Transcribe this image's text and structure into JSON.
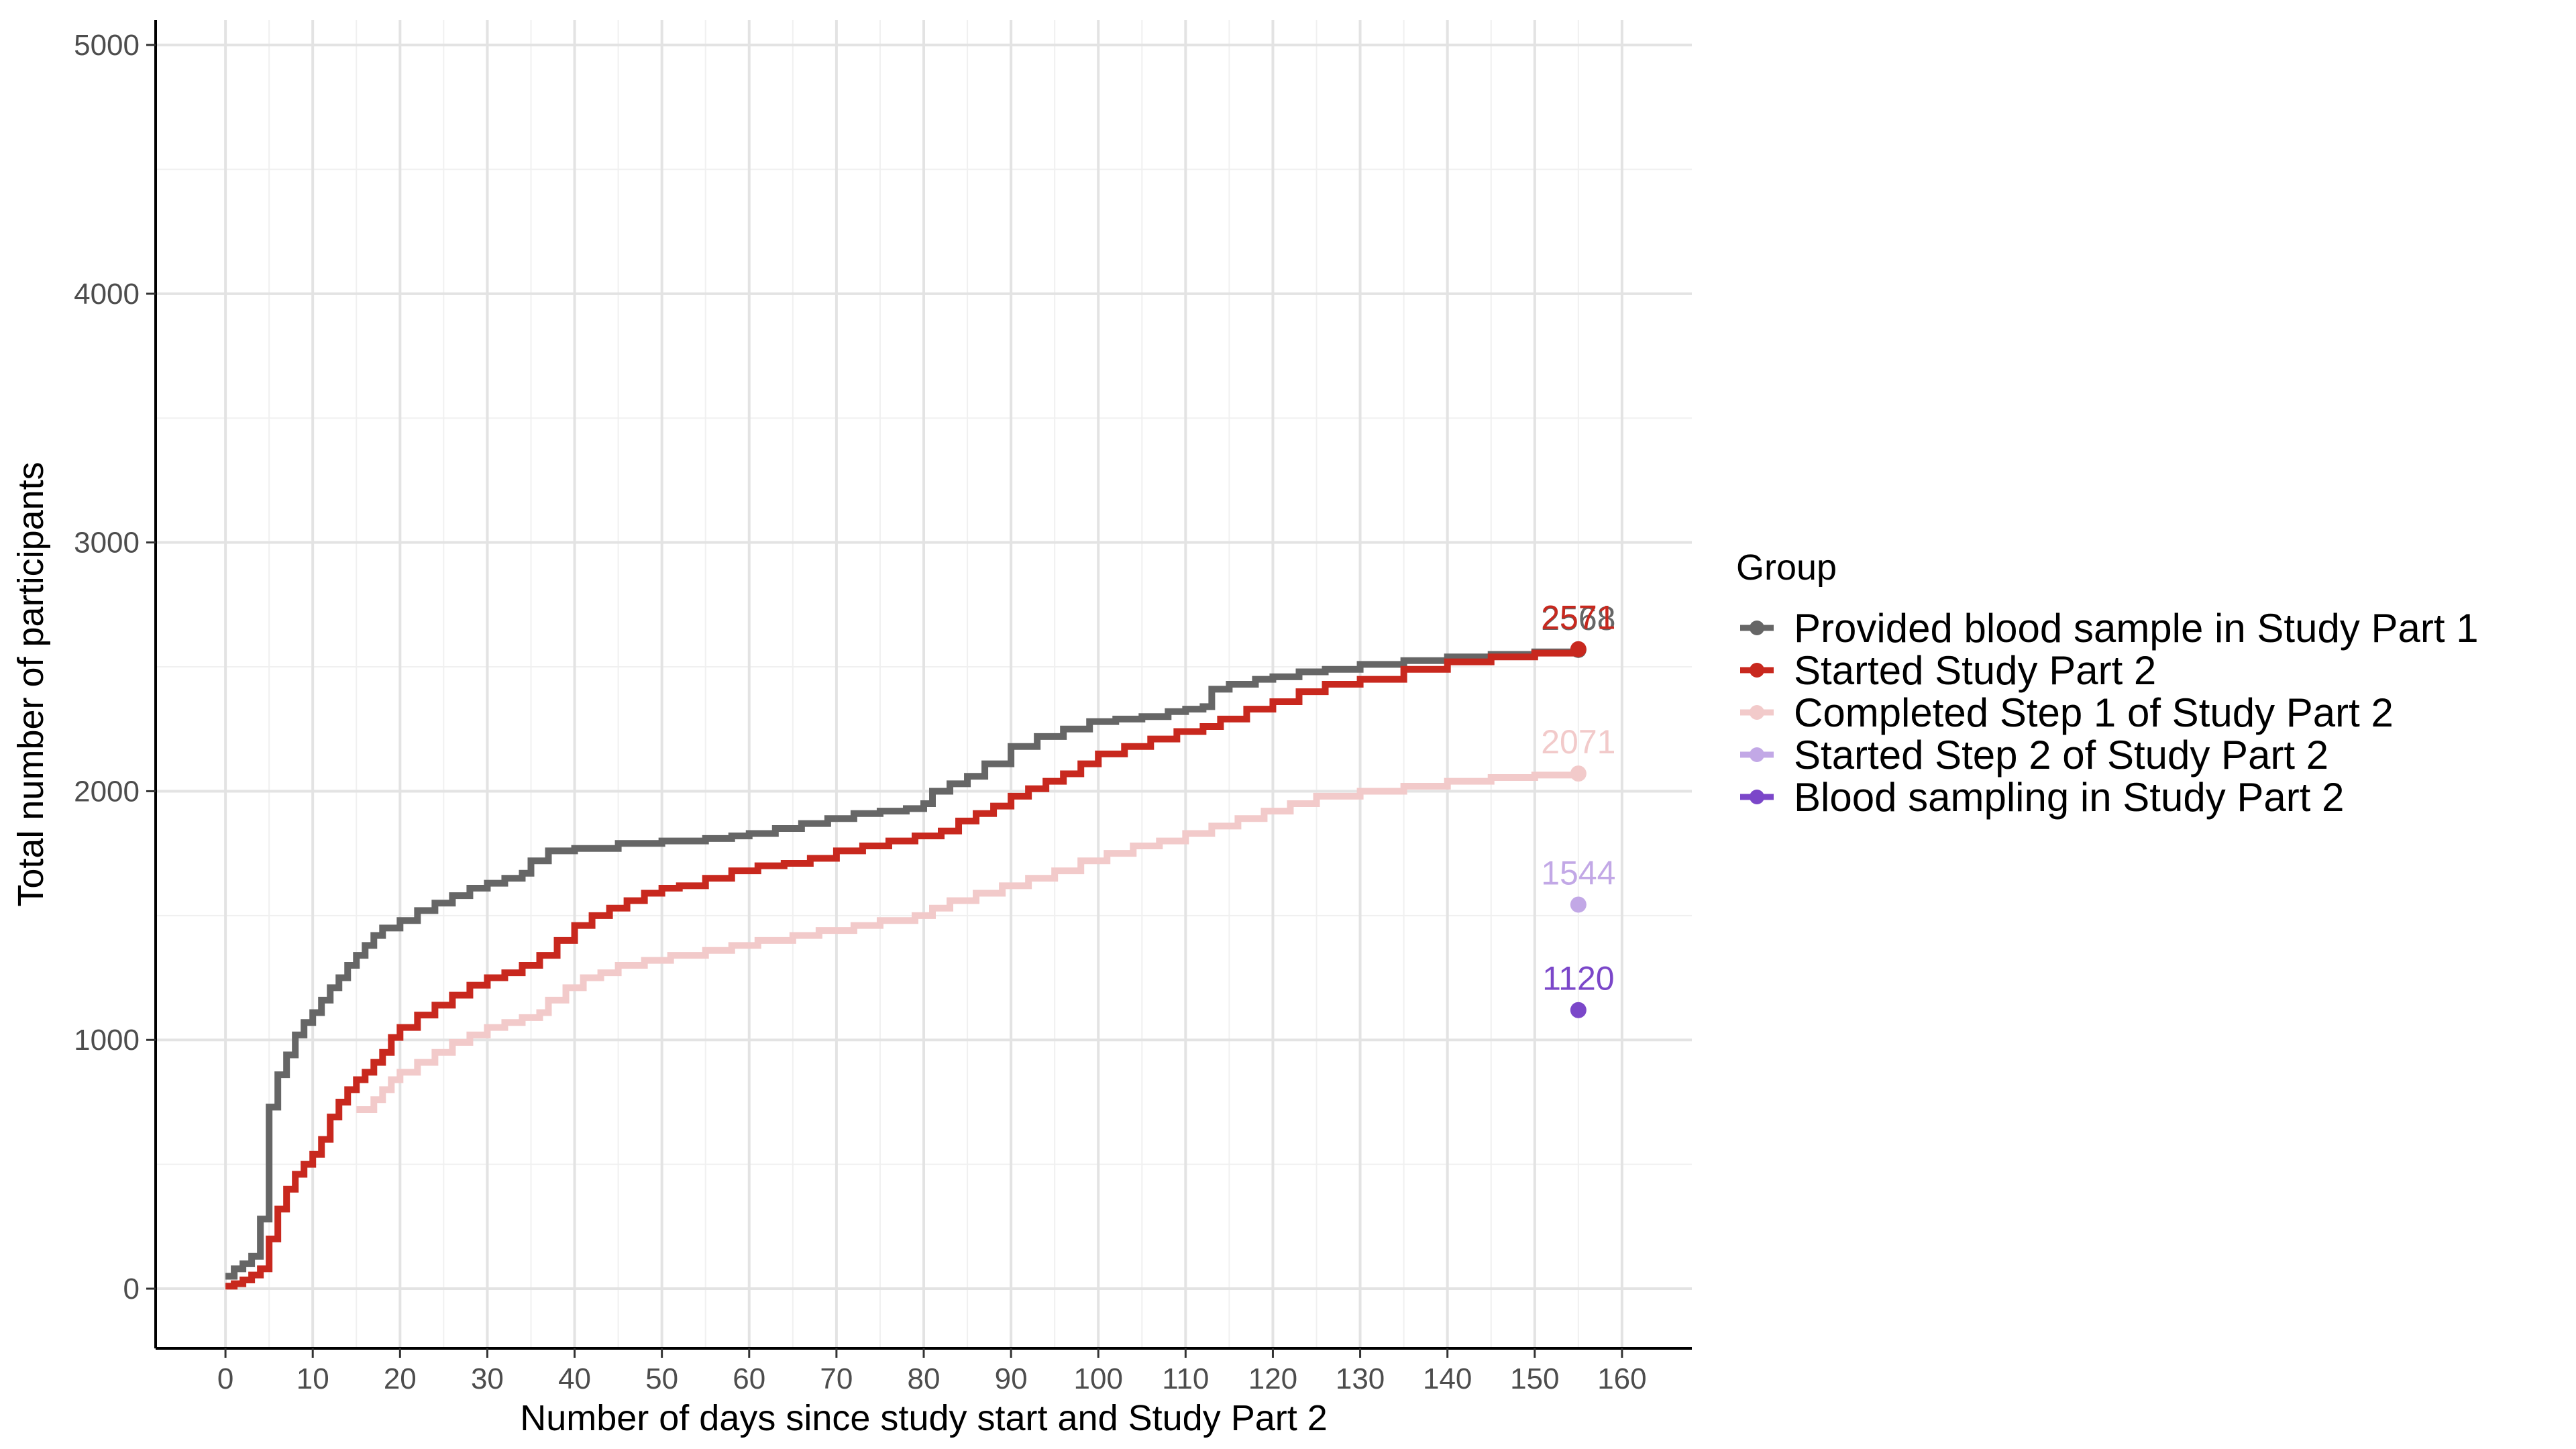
{
  "chart_data": {
    "type": "line",
    "xlabel": "Number of days since study start and Study Part 2",
    "ylabel": "Total number of participants",
    "xlim": [
      -8,
      168
    ],
    "ylim": [
      -240,
      5100
    ],
    "xticks": [
      0,
      10,
      20,
      30,
      40,
      50,
      60,
      70,
      80,
      90,
      100,
      110,
      120,
      130,
      140,
      150,
      160
    ],
    "xtick_labels": [
      "0",
      "10",
      "20",
      "30",
      "40",
      "50",
      "60",
      "70",
      "80",
      "90",
      "100",
      "110",
      "120",
      "130",
      "140",
      "150",
      "160"
    ],
    "yticks": [
      0,
      1000,
      2000,
      3000,
      4000,
      5000
    ],
    "ytick_labels": [
      "0",
      "1000",
      "2000",
      "3000",
      "4000",
      "5000"
    ],
    "grid": true,
    "legend": {
      "title": "Group",
      "position": "right",
      "entries": [
        "Provided blood sample in Study Part 1",
        "Started Study Part 2",
        "Completed Step 1 of Study Part 2",
        "Started Step 2 of Study Part 2",
        "Blood sampling in Study Part 2"
      ]
    },
    "series": [
      {
        "name": "Provided blood sample in Study Part 1",
        "color": "#666666",
        "style": "step",
        "end_label": "2568",
        "points": [
          [
            0,
            50
          ],
          [
            1,
            80
          ],
          [
            2,
            100
          ],
          [
            3,
            130
          ],
          [
            4,
            280
          ],
          [
            5,
            730
          ],
          [
            6,
            860
          ],
          [
            7,
            940
          ],
          [
            8,
            1020
          ],
          [
            9,
            1070
          ],
          [
            10,
            1110
          ],
          [
            11,
            1160
          ],
          [
            12,
            1210
          ],
          [
            13,
            1250
          ],
          [
            14,
            1300
          ],
          [
            15,
            1340
          ],
          [
            16,
            1380
          ],
          [
            17,
            1420
          ],
          [
            18,
            1450
          ],
          [
            20,
            1480
          ],
          [
            22,
            1520
          ],
          [
            24,
            1550
          ],
          [
            26,
            1580
          ],
          [
            28,
            1610
          ],
          [
            30,
            1630
          ],
          [
            32,
            1650
          ],
          [
            34,
            1670
          ],
          [
            35,
            1720
          ],
          [
            37,
            1760
          ],
          [
            40,
            1770
          ],
          [
            45,
            1790
          ],
          [
            50,
            1800
          ],
          [
            55,
            1810
          ],
          [
            58,
            1820
          ],
          [
            60,
            1830
          ],
          [
            63,
            1850
          ],
          [
            66,
            1870
          ],
          [
            69,
            1890
          ],
          [
            72,
            1910
          ],
          [
            75,
            1920
          ],
          [
            78,
            1930
          ],
          [
            80,
            1950
          ],
          [
            81,
            2000
          ],
          [
            83,
            2030
          ],
          [
            85,
            2060
          ],
          [
            87,
            2110
          ],
          [
            90,
            2180
          ],
          [
            93,
            2220
          ],
          [
            96,
            2250
          ],
          [
            99,
            2280
          ],
          [
            102,
            2290
          ],
          [
            105,
            2300
          ],
          [
            108,
            2320
          ],
          [
            110,
            2330
          ],
          [
            112,
            2340
          ],
          [
            113,
            2410
          ],
          [
            115,
            2430
          ],
          [
            118,
            2450
          ],
          [
            120,
            2460
          ],
          [
            123,
            2480
          ],
          [
            126,
            2490
          ],
          [
            130,
            2510
          ],
          [
            135,
            2525
          ],
          [
            140,
            2540
          ],
          [
            145,
            2550
          ],
          [
            150,
            2560
          ],
          [
            155,
            2568
          ]
        ]
      },
      {
        "name": "Started Study Part 2",
        "color": "#c8281e",
        "style": "step",
        "end_label": "2571",
        "points": [
          [
            0,
            10
          ],
          [
            1,
            20
          ],
          [
            2,
            35
          ],
          [
            3,
            55
          ],
          [
            4,
            80
          ],
          [
            5,
            200
          ],
          [
            6,
            320
          ],
          [
            7,
            400
          ],
          [
            8,
            460
          ],
          [
            9,
            500
          ],
          [
            10,
            540
          ],
          [
            11,
            600
          ],
          [
            12,
            690
          ],
          [
            13,
            750
          ],
          [
            14,
            800
          ],
          [
            15,
            840
          ],
          [
            16,
            870
          ],
          [
            17,
            910
          ],
          [
            18,
            950
          ],
          [
            19,
            1010
          ],
          [
            20,
            1050
          ],
          [
            22,
            1100
          ],
          [
            24,
            1140
          ],
          [
            26,
            1180
          ],
          [
            28,
            1220
          ],
          [
            30,
            1250
          ],
          [
            32,
            1270
          ],
          [
            34,
            1300
          ],
          [
            36,
            1340
          ],
          [
            38,
            1400
          ],
          [
            40,
            1460
          ],
          [
            42,
            1500
          ],
          [
            44,
            1530
          ],
          [
            46,
            1560
          ],
          [
            48,
            1590
          ],
          [
            50,
            1610
          ],
          [
            52,
            1620
          ],
          [
            55,
            1650
          ],
          [
            58,
            1680
          ],
          [
            61,
            1700
          ],
          [
            64,
            1710
          ],
          [
            67,
            1730
          ],
          [
            70,
            1760
          ],
          [
            73,
            1780
          ],
          [
            76,
            1800
          ],
          [
            79,
            1820
          ],
          [
            82,
            1840
          ],
          [
            84,
            1880
          ],
          [
            86,
            1910
          ],
          [
            88,
            1940
          ],
          [
            90,
            1980
          ],
          [
            92,
            2010
          ],
          [
            94,
            2040
          ],
          [
            96,
            2070
          ],
          [
            98,
            2110
          ],
          [
            100,
            2150
          ],
          [
            103,
            2180
          ],
          [
            106,
            2210
          ],
          [
            109,
            2240
          ],
          [
            112,
            2260
          ],
          [
            114,
            2290
          ],
          [
            117,
            2330
          ],
          [
            120,
            2360
          ],
          [
            123,
            2400
          ],
          [
            126,
            2430
          ],
          [
            130,
            2450
          ],
          [
            135,
            2490
          ],
          [
            140,
            2520
          ],
          [
            145,
            2540
          ],
          [
            150,
            2555
          ],
          [
            155,
            2571
          ]
        ]
      },
      {
        "name": "Completed Step 1 of Study Part 2",
        "color": "#f2caca",
        "style": "step",
        "end_label": "2071",
        "points": [
          [
            15,
            720
          ],
          [
            17,
            760
          ],
          [
            18,
            800
          ],
          [
            19,
            840
          ],
          [
            20,
            870
          ],
          [
            22,
            910
          ],
          [
            24,
            950
          ],
          [
            26,
            990
          ],
          [
            28,
            1020
          ],
          [
            30,
            1050
          ],
          [
            32,
            1070
          ],
          [
            34,
            1090
          ],
          [
            36,
            1110
          ],
          [
            37,
            1160
          ],
          [
            39,
            1210
          ],
          [
            41,
            1250
          ],
          [
            43,
            1270
          ],
          [
            45,
            1300
          ],
          [
            48,
            1320
          ],
          [
            51,
            1340
          ],
          [
            55,
            1360
          ],
          [
            58,
            1380
          ],
          [
            61,
            1400
          ],
          [
            65,
            1420
          ],
          [
            68,
            1440
          ],
          [
            72,
            1460
          ],
          [
            75,
            1480
          ],
          [
            79,
            1500
          ],
          [
            81,
            1530
          ],
          [
            83,
            1560
          ],
          [
            86,
            1590
          ],
          [
            89,
            1620
          ],
          [
            92,
            1650
          ],
          [
            95,
            1680
          ],
          [
            98,
            1720
          ],
          [
            101,
            1750
          ],
          [
            104,
            1780
          ],
          [
            107,
            1800
          ],
          [
            110,
            1830
          ],
          [
            113,
            1860
          ],
          [
            116,
            1890
          ],
          [
            119,
            1920
          ],
          [
            122,
            1950
          ],
          [
            125,
            1980
          ],
          [
            130,
            2000
          ],
          [
            135,
            2020
          ],
          [
            140,
            2040
          ],
          [
            145,
            2055
          ],
          [
            150,
            2065
          ],
          [
            155,
            2071
          ]
        ]
      },
      {
        "name": "Started Step 2 of Study Part 2",
        "color": "#c2a8e6",
        "style": "point",
        "end_label": "1544",
        "points": [
          [
            155,
            1544
          ]
        ]
      },
      {
        "name": "Blood sampling in Study Part 2",
        "color": "#7b47c9",
        "style": "point",
        "end_label": "1120",
        "points": [
          [
            155,
            1120
          ]
        ]
      }
    ]
  }
}
